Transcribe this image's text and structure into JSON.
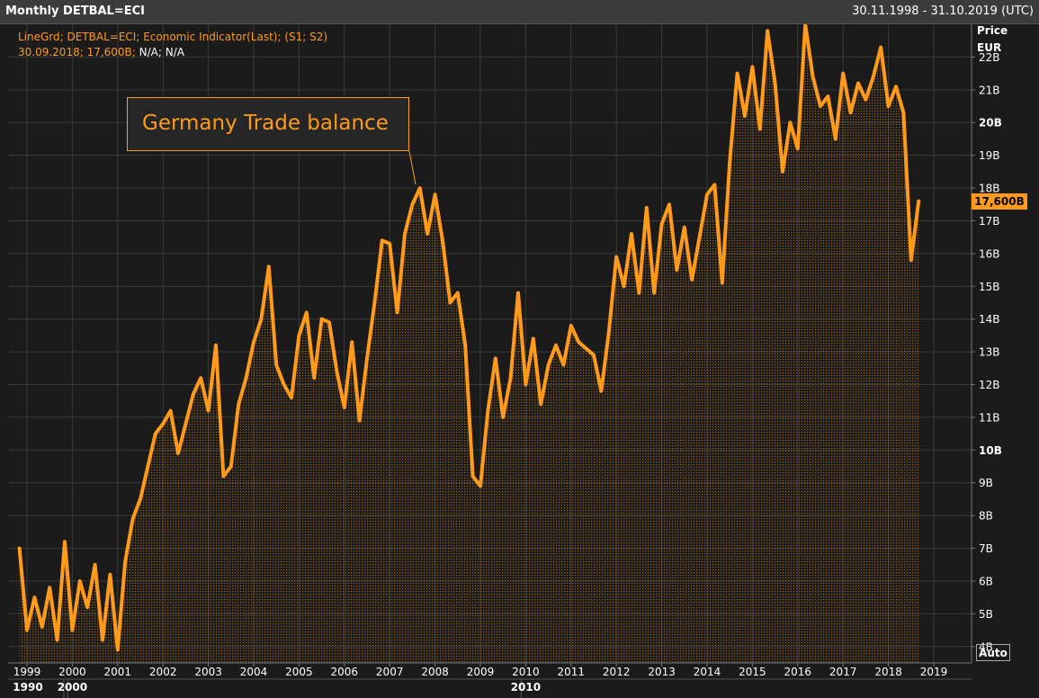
{
  "header": {
    "title": "Monthly DETBAL=ECI",
    "range": "30.11.1998 - 31.10.2019 (UTC)"
  },
  "legend": {
    "line1": "LineGrd; DETBAL=ECI; Economic Indicator(Last); (S1; S2)",
    "line2_date_value": "30.09.2018; 17,600B;",
    "line2_na": " N/A; N/A"
  },
  "annotation": "Germany Trade balance",
  "axis": {
    "y_title": "Price",
    "y_unit": "EUR",
    "last_value_label": "17,600B",
    "auto_button": "Auto"
  },
  "colors": {
    "line": "#ff9a1a",
    "background": "#1b1b1b",
    "grid": "#3a3a3a"
  },
  "chart_data": {
    "type": "area",
    "ylim": [
      3.5,
      23.0
    ],
    "y_ticks": [
      4,
      5,
      6,
      7,
      8,
      9,
      10,
      11,
      12,
      13,
      14,
      15,
      16,
      17,
      18,
      19,
      20,
      21,
      22
    ],
    "y_tick_labels": [
      "4B",
      "5B",
      "6B",
      "7B",
      "8B",
      "9B",
      "10B",
      "11B",
      "12B",
      "13B",
      "14B",
      "15B",
      "16B",
      "17B",
      "18B",
      "19B",
      "20B",
      "21B",
      "22B"
    ],
    "y_bold_ticks": [
      10,
      20
    ],
    "x_ticks": [
      "1999",
      "2000",
      "2001",
      "2002",
      "2003",
      "2004",
      "2005",
      "2006",
      "2007",
      "2008",
      "2009",
      "2010",
      "2011",
      "2012",
      "2013",
      "2014",
      "2015",
      "2016",
      "2017",
      "2018",
      "2019"
    ],
    "x_decades": [
      "1990",
      "2000",
      "2010"
    ],
    "series": [
      {
        "x": [
          "1998-11",
          "1999-01",
          "1999-03",
          "1999-05",
          "1999-07",
          "1999-09",
          "1999-11",
          "2000-01",
          "2000-03",
          "2000-05",
          "2000-07",
          "2000-09",
          "2000-11",
          "2001-01",
          "2001-03",
          "2001-05",
          "2001-07",
          "2001-09",
          "2001-11",
          "2002-01",
          "2002-03",
          "2002-05",
          "2002-07",
          "2002-09",
          "2002-11",
          "2003-01",
          "2003-03",
          "2003-05",
          "2003-07",
          "2003-09",
          "2003-11",
          "2004-01",
          "2004-03",
          "2004-05",
          "2004-07",
          "2004-09",
          "2004-11",
          "2005-01",
          "2005-03",
          "2005-05",
          "2005-07",
          "2005-09",
          "2005-11",
          "2006-01",
          "2006-03",
          "2006-05",
          "2006-07",
          "2006-09",
          "2006-11",
          "2007-01",
          "2007-03",
          "2007-05",
          "2007-07",
          "2007-09",
          "2007-11",
          "2008-01",
          "2008-03",
          "2008-05",
          "2008-07",
          "2008-09",
          "2008-11",
          "2009-01",
          "2009-03",
          "2009-05",
          "2009-07",
          "2009-09",
          "2009-11",
          "2010-01",
          "2010-03",
          "2010-05",
          "2010-07",
          "2010-09",
          "2010-11",
          "2011-01",
          "2011-03",
          "2011-05",
          "2011-07",
          "2011-09",
          "2011-11",
          "2012-01",
          "2012-03",
          "2012-05",
          "2012-07",
          "2012-09",
          "2012-11",
          "2013-01",
          "2013-03",
          "2013-05",
          "2013-07",
          "2013-09",
          "2013-11",
          "2014-01",
          "2014-03",
          "2014-05",
          "2014-07",
          "2014-09",
          "2014-11",
          "2015-01",
          "2015-03",
          "2015-05",
          "2015-07",
          "2015-09",
          "2015-11",
          "2016-01",
          "2016-03",
          "2016-05",
          "2016-07",
          "2016-09",
          "2016-11",
          "2017-01",
          "2017-03",
          "2017-05",
          "2017-07",
          "2017-09",
          "2017-11",
          "2018-01",
          "2018-03",
          "2018-05",
          "2018-07",
          "2018-09"
        ],
        "values": [
          7.0,
          4.5,
          5.5,
          4.6,
          5.8,
          4.2,
          7.2,
          4.5,
          6.0,
          5.2,
          6.5,
          4.2,
          6.2,
          3.9,
          6.6,
          7.9,
          8.5,
          9.5,
          10.5,
          10.8,
          11.2,
          9.9,
          10.8,
          11.7,
          12.2,
          11.2,
          13.2,
          9.2,
          9.5,
          11.4,
          12.2,
          13.3,
          14.0,
          15.6,
          12.6,
          12.0,
          11.6,
          13.5,
          14.2,
          12.2,
          14.0,
          13.9,
          12.4,
          11.3,
          13.3,
          10.9,
          12.8,
          14.5,
          16.4,
          16.3,
          14.2,
          16.6,
          17.5,
          18.0,
          16.6,
          17.8,
          16.4,
          14.5,
          14.8,
          13.2,
          9.2,
          8.9,
          11.2,
          12.8,
          11.0,
          12.2,
          14.8,
          12.0,
          13.4,
          11.4,
          12.6,
          13.2,
          12.6,
          13.8,
          13.3,
          13.1,
          12.9,
          11.8,
          13.6,
          15.9,
          15.0,
          16.6,
          14.8,
          17.4,
          14.8,
          16.9,
          17.5,
          15.5,
          16.8,
          15.2,
          16.5,
          17.8,
          18.1,
          15.1,
          18.8,
          21.5,
          20.2,
          21.7,
          19.8,
          22.8,
          21.2,
          18.5,
          20.0,
          19.2,
          23.0,
          21.4,
          20.5,
          20.8,
          19.5,
          21.5,
          20.3,
          21.2,
          20.7,
          21.4,
          22.3,
          20.5,
          21.1,
          20.3,
          15.8,
          17.6
        ]
      }
    ]
  }
}
